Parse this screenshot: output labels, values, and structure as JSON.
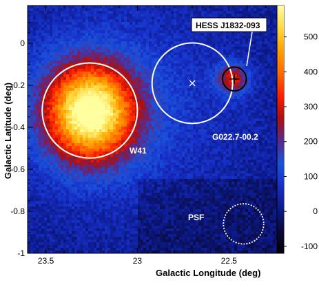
{
  "chart_data": {
    "type": "heatmap",
    "xlabel": "Galactic Longitude (deg)",
    "ylabel": "Galactic Latitude (deg)",
    "x_ticks": [
      23.5,
      23,
      22.5
    ],
    "x_tick_labels": [
      "23.5",
      "23",
      "22.5"
    ],
    "xlim": [
      23.6,
      22.2
    ],
    "y_ticks": [
      0,
      -0.2,
      -0.4,
      -0.6,
      -0.8,
      -1
    ],
    "y_tick_labels": [
      "0",
      "-0.2",
      "-0.4",
      "-0.6",
      "-0.8",
      "-1"
    ],
    "ylim": [
      -1.0,
      0.18
    ],
    "colorbar": {
      "ticks": [
        -100,
        0,
        100,
        200,
        300,
        400,
        500
      ],
      "tick_labels": [
        "-100",
        "0",
        "100",
        "200",
        "300",
        "400",
        "500"
      ],
      "range": [
        -120,
        590
      ],
      "colors": [
        "#000000",
        "#0a0a3a",
        "#0c1a8a",
        "#1730c8",
        "#1a52d9",
        "#5a2a8a",
        "#aa1010",
        "#ff2000",
        "#ff6a00",
        "#ffa000",
        "#ffd840",
        "#ffffa0"
      ]
    },
    "sources": [
      {
        "name": "W41",
        "l": 23.26,
        "b": -0.33,
        "peak": 560,
        "sigma_l": 0.17,
        "sigma_b": 0.16
      },
      {
        "name": "HESS J1832-093",
        "l": 22.48,
        "b": -0.17,
        "peak": 270,
        "sigma_l": 0.06,
        "sigma_b": 0.05
      }
    ],
    "annotations": [
      {
        "label": "W41",
        "kind": "circle",
        "color": "#ffffff",
        "center_l": 23.26,
        "center_b": -0.32,
        "radius_deg": 0.26
      },
      {
        "label": "G022.7-00.2",
        "kind": "circle",
        "color": "#ffffff",
        "center_l": 22.7,
        "center_b": -0.19,
        "radius_deg": 0.22
      },
      {
        "label": "HESS J1832-093",
        "kind": "circle",
        "color": "#000000",
        "center_l": 22.47,
        "center_b": -0.17,
        "radius_deg": 0.065
      },
      {
        "label": "PSF",
        "kind": "dotted-circle",
        "color": "#ffffff",
        "center_l": 22.42,
        "center_b": -0.86,
        "radius_deg": 0.11
      }
    ],
    "markers": [
      {
        "kind": "x-cross",
        "l": 22.7,
        "b": -0.19,
        "color": "#ffffff"
      },
      {
        "kind": "plus",
        "l": 22.47,
        "b": -0.17,
        "color": "#000000"
      }
    ],
    "labels": {
      "w41": "W41",
      "g022": "G022.7-00.2",
      "hess": "HESS J1832-093",
      "psf": "PSF"
    }
  }
}
